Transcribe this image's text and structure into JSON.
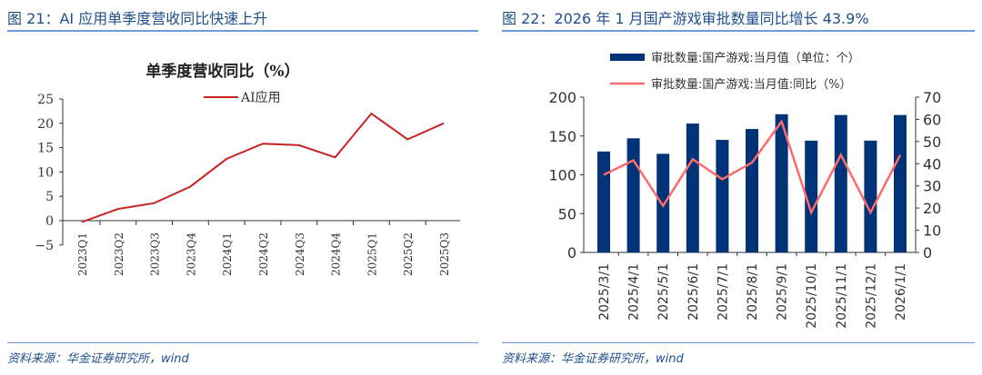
{
  "header": {
    "left_title": "图 21：AI 应用单季度营收同比快速上升",
    "right_title": "图 22：2026 年 1 月国产游戏审批数量同比增长 43.9%"
  },
  "footer": {
    "left_source": "资料来源：华金证券研究所，wind",
    "right_source": "资料来源：华金证券研究所，wind"
  },
  "chart_data": [
    {
      "type": "line",
      "title": "单季度营收同比（%）",
      "categories": [
        "2023Q1",
        "2023Q2",
        "2023Q3",
        "2023Q4",
        "2024Q1",
        "2024Q2",
        "2024Q3",
        "2024Q4",
        "2025Q1",
        "2025Q2",
        "2025Q3"
      ],
      "series": [
        {
          "name": "AI应用",
          "values": [
            -0.3,
            2.4,
            3.6,
            7.0,
            12.7,
            15.8,
            15.5,
            13.0,
            22.0,
            16.7,
            20.0
          ],
          "color": "#c82423"
        }
      ],
      "ylim": [
        -5,
        25
      ],
      "yticks": [
        -5,
        0,
        5,
        10,
        15,
        20,
        25
      ],
      "legend": "top",
      "grid": false
    },
    {
      "type": "bar+line",
      "categories": [
        "2025/3/1",
        "2025/4/1",
        "2025/5/1",
        "2025/6/1",
        "2025/7/1",
        "2025/8/1",
        "2025/9/1",
        "2025/10/1",
        "2025/11/1",
        "2025/12/1",
        "2026/1/1"
      ],
      "series": [
        {
          "name": "审批数量:国产游戏:当月值（单位：个）",
          "type": "bar",
          "axis": "left",
          "color": "#003378",
          "values": [
            130,
            147,
            127,
            166,
            145,
            159,
            178,
            144,
            177,
            144,
            177
          ]
        },
        {
          "name": "审批数量:国产游戏:当月值:同比（%）",
          "type": "line",
          "axis": "right",
          "color": "#ff6b6b",
          "values": [
            35,
            41.5,
            21,
            42,
            33,
            40.5,
            59,
            18,
            44,
            18,
            43.9
          ]
        }
      ],
      "ylim_left": [
        0,
        200
      ],
      "yticks_left": [
        0,
        50,
        100,
        150,
        200
      ],
      "ylim_right": [
        0,
        70
      ],
      "yticks_right": [
        0,
        10,
        20,
        30,
        40,
        50,
        60,
        70
      ],
      "legend": "top",
      "grid": false
    }
  ]
}
